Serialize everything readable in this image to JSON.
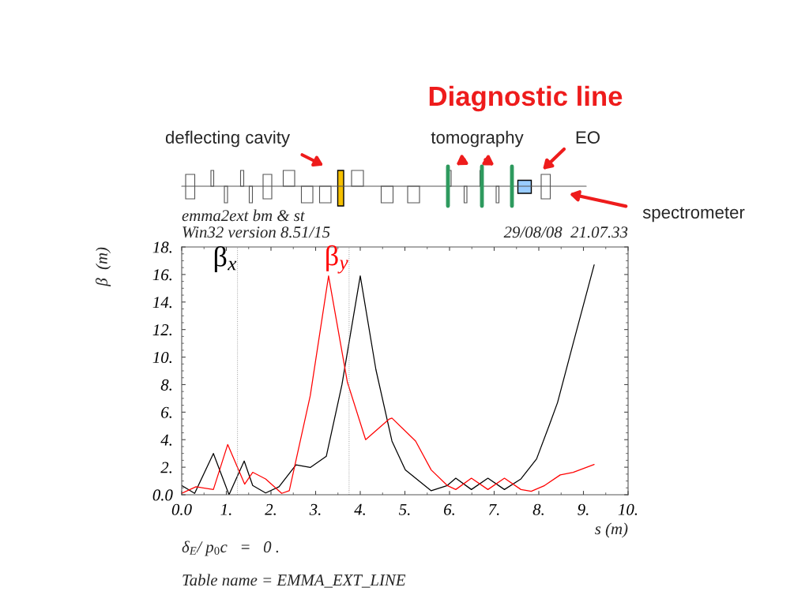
{
  "chart_data": {
    "type": "line",
    "title": "Diagnostic line",
    "xlabel": "s (m)",
    "ylabel": "β  (m)",
    "x": [
      0,
      0.29,
      0.71,
      1.06,
      1.4,
      1.59,
      1.88,
      2.18,
      2.56,
      2.88,
      3.24,
      3.59,
      4.0,
      4.35,
      4.71,
      5.01,
      5.59,
      5.95,
      6.14,
      6.49,
      6.86,
      7.23,
      7.6,
      7.95,
      8.24,
      8.42,
      8.77,
      9.24
    ],
    "series": [
      {
        "name": "β$_{x}$",
        "color": "#000000",
        "values": [
          0.67,
          0.1,
          3.0,
          0,
          2.45,
          0.67,
          0.13,
          0.58,
          2.17,
          1.98,
          2.8,
          8.0,
          15.9,
          9.1,
          3.9,
          1.8,
          0.29,
          0.67,
          1.2,
          0.38,
          1.2,
          0.38,
          1.15,
          2.6,
          5.1,
          6.7,
          11.0,
          16.7
        ]
      },
      {
        "name": "β$_{y}$",
        "color": "#ff0000",
        "x": [
          0,
          0.32,
          0.71,
          1.03,
          1.41,
          1.59,
          1.88,
          2.24,
          2.41,
          2.88,
          3.29,
          3.71,
          4.12,
          4.65,
          4.71,
          5.24,
          5.59,
          5.95,
          6.14,
          6.49,
          6.86,
          7.23,
          7.6,
          7.83,
          8.13,
          8.48,
          8.77,
          9.24
        ],
        "values": [
          0.1,
          0.58,
          0.38,
          3.65,
          0.77,
          1.63,
          1.15,
          0.1,
          0.29,
          7.2,
          15.9,
          8.2,
          4.0,
          5.5,
          5.57,
          3.9,
          1.8,
          0.67,
          0.38,
          1.2,
          0.38,
          1.2,
          0.38,
          0.25,
          0.67,
          1.44,
          1.63,
          2.2
        ]
      }
    ],
    "xlim": [
      0,
      10
    ],
    "ylim": [
      0,
      18
    ],
    "xticks": [
      {
        "value": 0,
        "label": "0.0"
      },
      {
        "value": 1,
        "label": "1."
      },
      {
        "value": 2,
        "label": "2."
      },
      {
        "value": 3,
        "label": "3."
      },
      {
        "value": 4,
        "label": "4."
      },
      {
        "value": 5,
        "label": "5."
      },
      {
        "value": 6,
        "label": "6."
      },
      {
        "value": 7,
        "label": "7."
      },
      {
        "value": 8,
        "label": "8."
      },
      {
        "value": 9,
        "label": "9."
      },
      {
        "value": 10,
        "label": "10."
      }
    ],
    "yticks": [
      {
        "value": 0,
        "label": "0.0"
      },
      {
        "value": 2,
        "label": "2."
      },
      {
        "value": 4,
        "label": "4."
      },
      {
        "value": 6,
        "label": "6."
      },
      {
        "value": 8,
        "label": "8."
      },
      {
        "value": 10,
        "label": "10."
      },
      {
        "value": 12,
        "label": "12."
      },
      {
        "value": 14,
        "label": "14."
      },
      {
        "value": 16,
        "label": "16."
      },
      {
        "value": 18,
        "label": "18."
      }
    ],
    "ref_lines": [
      {
        "axis": "x",
        "value": 1.25,
        "color": "#999999",
        "line_style": "dotted"
      },
      {
        "axis": "x",
        "value": 3.75,
        "color": "#999999",
        "line_style": "dotted"
      }
    ],
    "grid": false,
    "legend": false,
    "marker": "none",
    "line_style": "solid",
    "annotations": [
      "deflecting cavity",
      "tomography",
      "EO",
      "spectrometer",
      "emma2ext bm & st",
      "Win32 version 8.51/15",
      "29/08/08  21.07.33",
      "δ$_{E}$/ p$_{0}$c   =   0 .",
      "Table name = EMMA_EXT_LINE"
    ]
  }
}
